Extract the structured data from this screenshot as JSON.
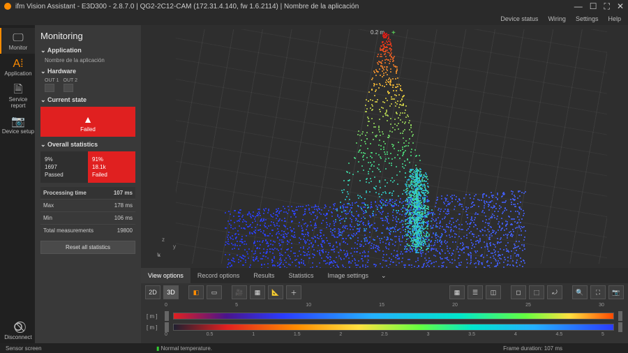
{
  "window": {
    "title": "ifm Vision Assistant - E3D300 - 2.8.7.0 | QG2-2C12-CAM (172.31.4.140, fw 1.6.2114) | Nombre de la aplicación",
    "minimize": "—",
    "maximize": "☐",
    "fullscreen": "⛶",
    "close": "✕"
  },
  "menu": {
    "device_status": "Device status",
    "wiring": "Wiring",
    "settings": "Settings",
    "help": "Help"
  },
  "leftrail": {
    "monitor": "Monitor",
    "application": "Application",
    "service_report": "Service report",
    "device_setup": "Device setup",
    "disconnect": "Disconnect"
  },
  "panel": {
    "title": "Monitoring",
    "app_h": "Application",
    "app_name": "Nombre de la aplicación",
    "hardware_h": "Hardware",
    "out1": "OUT 1",
    "out2": "OUT 2",
    "state_h": "Current state",
    "failed_label": "Failed",
    "stats_h": "Overall statistics",
    "pass_pct": "9%",
    "pass_count": "1697",
    "pass_label": "Passed",
    "fail_pct": "91%",
    "fail_count": "18.1k",
    "fail_label": "Failed",
    "proc_time_h": "Processing time",
    "proc_time_v": "107 ms",
    "max_l": "Max",
    "max_v": "178 ms",
    "min_l": "Min",
    "min_v": "106 ms",
    "total_l": "Total measurements",
    "total_v": "19800",
    "reset": "Reset all statistics"
  },
  "viewer": {
    "distance_label": "0.2 m",
    "axes": {
      "x": "x",
      "y": "y",
      "z": "z"
    }
  },
  "tabs": {
    "view_options": "View options",
    "record_options": "Record options",
    "results": "Results",
    "statistics": "Statistics",
    "image_settings": "Image settings"
  },
  "toolbar": {
    "d2": "2D",
    "d3": "3D"
  },
  "scales": {
    "top_unit": "[ m ]",
    "ticks_top": [
      "0",
      "5",
      "10",
      "15",
      "20",
      "25",
      "30"
    ],
    "bot_unit": "[ m ]",
    "ticks_bot": [
      "0",
      "0.5",
      "1",
      "1.5",
      "2",
      "2.5",
      "3",
      "3.5",
      "4",
      "4.5",
      "5"
    ]
  },
  "status": {
    "left": "Sensor screen",
    "temp": "Normal temperature.",
    "frame": "Frame duration: 107 ms"
  },
  "colors": {
    "accent": "#ff8c00",
    "fail": "#e02020"
  }
}
